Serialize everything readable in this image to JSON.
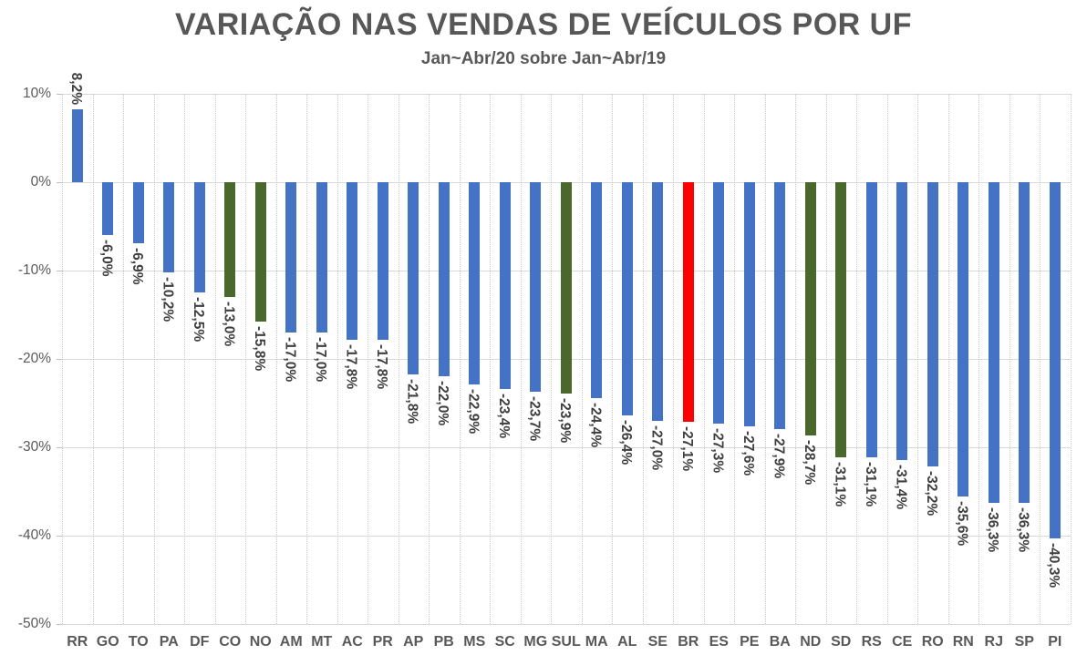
{
  "chart_data": {
    "type": "bar",
    "title": "VARIAÇÃO NAS VENDAS DE VEÍCULOS POR UF",
    "subtitle": "Jan~Abr/20 sobre Jan~Abr/19",
    "xlabel": "",
    "ylabel": "",
    "ylim": [
      -50,
      10
    ],
    "grid": "horizontal-solid-and-vertical-dotted",
    "legend": "none",
    "y_ticks": [
      "10%",
      "0%",
      "-10%",
      "-20%",
      "-30%",
      "-40%",
      "-50%"
    ],
    "y_tick_values": [
      10,
      0,
      -10,
      -20,
      -30,
      -40,
      -50
    ],
    "categories": [
      "RR",
      "GO",
      "TO",
      "PA",
      "DF",
      "CO",
      "NO",
      "AM",
      "MT",
      "AC",
      "PR",
      "AP",
      "PB",
      "MS",
      "SC",
      "MG",
      "SUL",
      "MA",
      "AL",
      "SE",
      "BR",
      "ES",
      "PE",
      "BA",
      "ND",
      "SD",
      "RS",
      "CE",
      "RO",
      "RN",
      "RJ",
      "SP",
      "PI"
    ],
    "values": [
      8.2,
      -6.0,
      -6.9,
      -10.2,
      -12.5,
      -13.0,
      -15.8,
      -17.0,
      -17.0,
      -17.8,
      -17.8,
      -21.8,
      -22.0,
      -22.9,
      -23.4,
      -23.7,
      -23.9,
      -24.4,
      -26.4,
      -27.0,
      -27.1,
      -27.3,
      -27.6,
      -27.9,
      -28.7,
      -31.1,
      -31.1,
      -31.4,
      -32.2,
      -35.6,
      -36.3,
      -36.3,
      -40.3
    ],
    "data_labels": [
      "8,2%",
      "-6,0%",
      "-6,9%",
      "-10,2%",
      "-12,5%",
      "-13,0%",
      "-15,8%",
      "-17,0%",
      "-17,0%",
      "-17,8%",
      "-17,8%",
      "-21,8%",
      "-22,0%",
      "-22,9%",
      "-23,4%",
      "-23,7%",
      "-23,9%",
      "-24,4%",
      "-26,4%",
      "-27,0%",
      "-27,1%",
      "-27,3%",
      "-27,6%",
      "-27,9%",
      "-28,7%",
      "-31,1%",
      "-31,1%",
      "-31,4%",
      "-32,2%",
      "-35,6%",
      "-36,3%",
      "-36,3%",
      "-40,3%"
    ],
    "bar_roles": [
      "state",
      "state",
      "state",
      "state",
      "state",
      "region",
      "region",
      "state",
      "state",
      "state",
      "state",
      "state",
      "state",
      "state",
      "state",
      "state",
      "region",
      "state",
      "state",
      "state",
      "brazil",
      "state",
      "state",
      "state",
      "region",
      "region",
      "state",
      "state",
      "state",
      "state",
      "state",
      "state",
      "state"
    ],
    "role_colors": {
      "state": "#4472C4",
      "region": "#4A672C",
      "brazil": "#FF0000"
    }
  }
}
